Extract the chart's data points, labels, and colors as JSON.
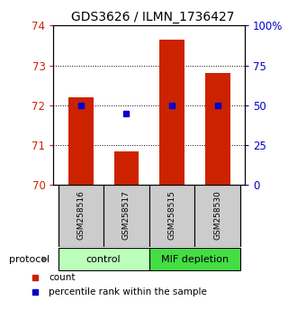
{
  "title": "GDS3626 / ILMN_1736427",
  "samples": [
    "GSM258516",
    "GSM258517",
    "GSM258515",
    "GSM258530"
  ],
  "bar_values": [
    72.2,
    70.85,
    73.65,
    72.8
  ],
  "pct_ranks": [
    50,
    45,
    50,
    50
  ],
  "bar_color": "#cc2200",
  "percentile_color": "#0000cc",
  "ylim_left": [
    70,
    74
  ],
  "ylim_right": [
    0,
    100
  ],
  "yticks_left": [
    70,
    71,
    72,
    73,
    74
  ],
  "yticks_right": [
    0,
    25,
    50,
    75,
    100
  ],
  "ytick_labels_right": [
    "0",
    "25",
    "50",
    "75",
    "100%"
  ],
  "grid_lines": [
    71,
    72,
    73
  ],
  "group1_label": "control",
  "group2_label": "MIF depletion",
  "group1_color": "#bbffbb",
  "group2_color": "#44dd44",
  "protocol_label": "protocol",
  "legend_count_label": "count",
  "legend_percentile_label": "percentile rank within the sample",
  "background_color": "#ffffff",
  "tick_label_color_left": "#cc2200",
  "tick_label_color_right": "#0000cc",
  "bar_bottom": 70,
  "bar_width": 0.55,
  "sample_box_color": "#cccccc"
}
